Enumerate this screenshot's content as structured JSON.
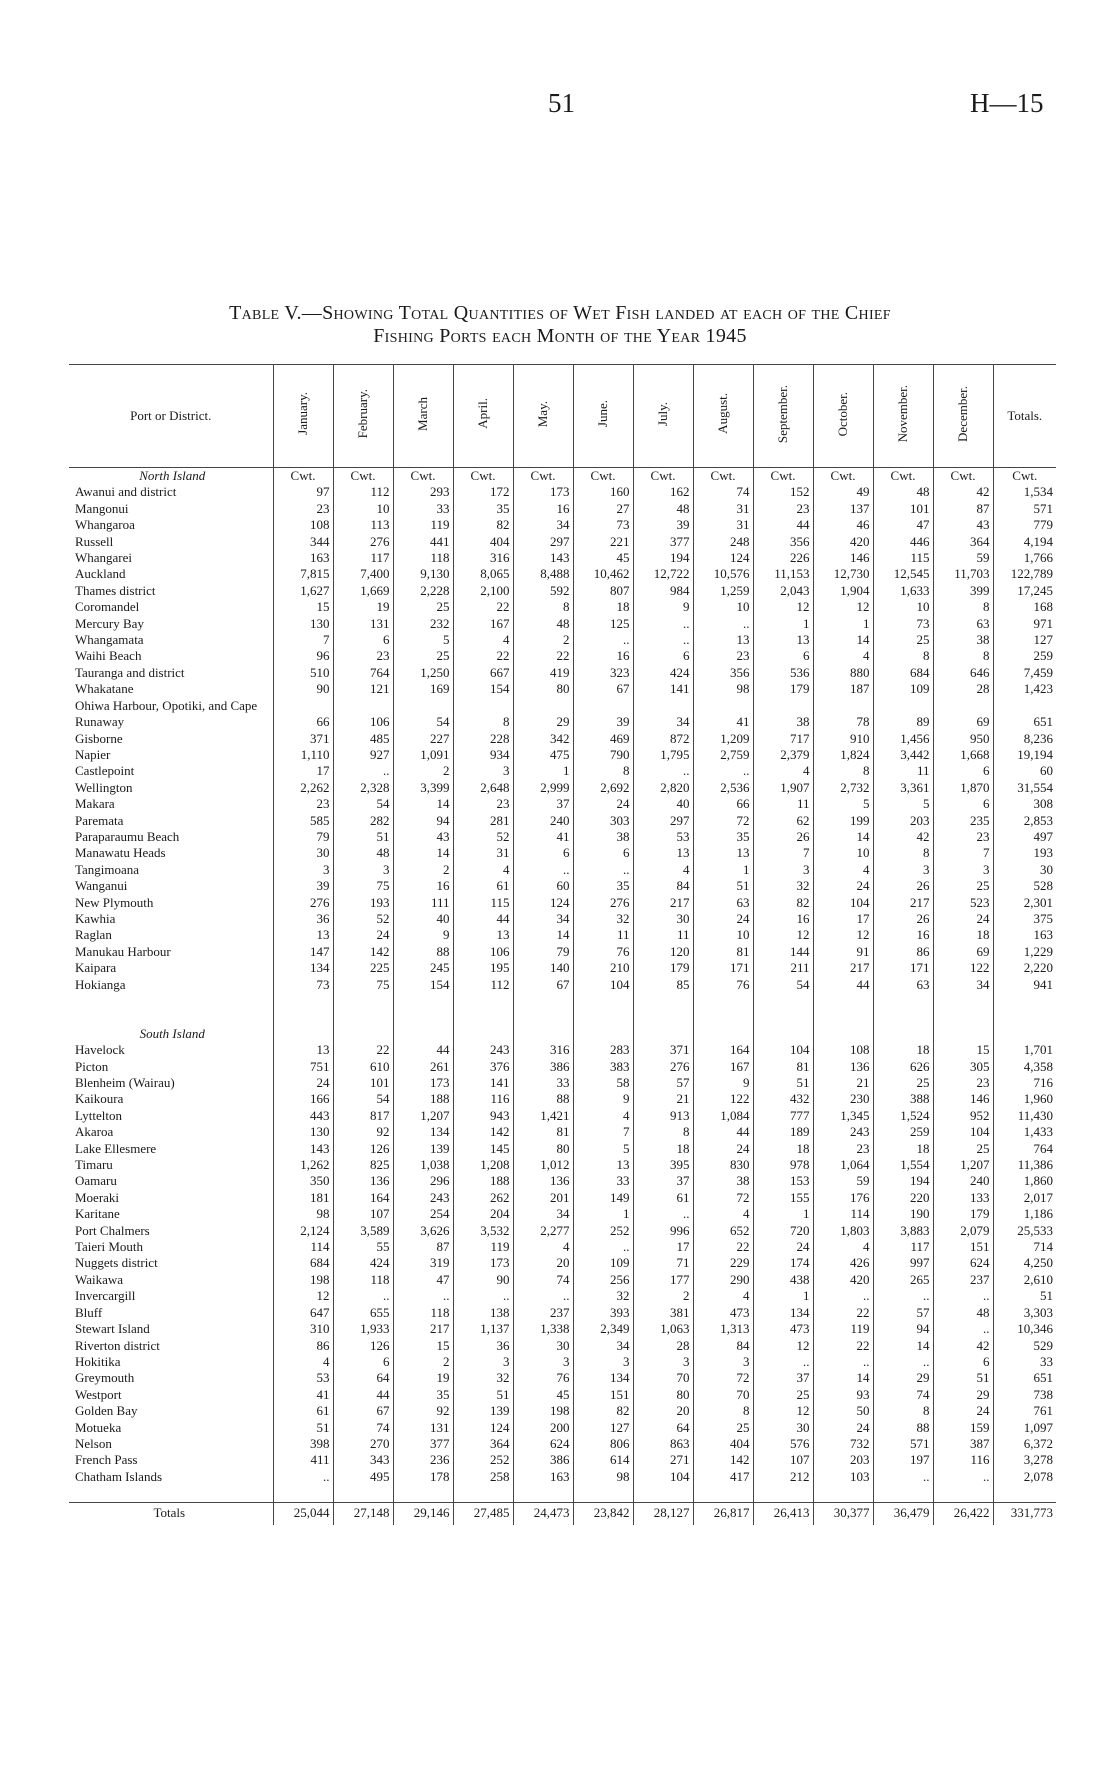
{
  "header": {
    "page_number": "51",
    "reference": "H—15"
  },
  "title": [
    "Table V.—Showing Total Quantities of Wet Fish landed at each of the Chief",
    "Fishing Ports each Month of the Year 1945"
  ],
  "table": {
    "columns": [
      "Port or District.",
      "January.",
      "February.",
      "March",
      "April.",
      "May.",
      "June.",
      "July.",
      "August.",
      "September.",
      "October.",
      "November.",
      "December.",
      "Totals."
    ],
    "units": [
      "Cwt.",
      "Cwt.",
      "Cwt.",
      "Cwt.",
      "Cwt.",
      "Cwt.",
      "Cwt.",
      "Cwt.",
      "Cwt.",
      "Cwt.",
      "Cwt.",
      "Cwt.",
      "Cwt."
    ],
    "sections": [
      {
        "heading": "North Island",
        "rows": [
          [
            "Awanui and district",
            "97",
            "112",
            "293",
            "172",
            "173",
            "160",
            "162",
            "74",
            "152",
            "49",
            "48",
            "42",
            "1,534"
          ],
          [
            "Mangonui",
            "23",
            "10",
            "33",
            "35",
            "16",
            "27",
            "48",
            "31",
            "23",
            "137",
            "101",
            "87",
            "571"
          ],
          [
            "Whangaroa",
            "108",
            "113",
            "119",
            "82",
            "34",
            "73",
            "39",
            "31",
            "44",
            "46",
            "47",
            "43",
            "779"
          ],
          [
            "Russell",
            "344",
            "276",
            "441",
            "404",
            "297",
            "221",
            "377",
            "248",
            "356",
            "420",
            "446",
            "364",
            "4,194"
          ],
          [
            "Whangarei",
            "163",
            "117",
            "118",
            "316",
            "143",
            "45",
            "194",
            "124",
            "226",
            "146",
            "115",
            "59",
            "1,766"
          ],
          [
            "Auckland",
            "7,815",
            "7,400",
            "9,130",
            "8,065",
            "8,488",
            "10,462",
            "12,722",
            "10,576",
            "11,153",
            "12,730",
            "12,545",
            "11,703",
            "122,789"
          ],
          [
            "Thames district",
            "1,627",
            "1,669",
            "2,228",
            "2,100",
            "592",
            "807",
            "984",
            "1,259",
            "2,043",
            "1,904",
            "1,633",
            "399",
            "17,245"
          ],
          [
            "Coromandel",
            "15",
            "19",
            "25",
            "22",
            "8",
            "18",
            "9",
            "10",
            "12",
            "12",
            "10",
            "8",
            "168"
          ],
          [
            "Mercury Bay",
            "130",
            "131",
            "232",
            "167",
            "48",
            "125",
            "..",
            "..",
            "1",
            "1",
            "73",
            "63",
            "971"
          ],
          [
            "Whangamata",
            "7",
            "6",
            "5",
            "4",
            "2",
            "..",
            "..",
            "13",
            "13",
            "14",
            "25",
            "38",
            "127"
          ],
          [
            "Waihi Beach",
            "96",
            "23",
            "25",
            "22",
            "22",
            "16",
            "6",
            "23",
            "6",
            "4",
            "8",
            "8",
            "259"
          ],
          [
            "Tauranga and district",
            "510",
            "764",
            "1,250",
            "667",
            "419",
            "323",
            "424",
            "356",
            "536",
            "880",
            "684",
            "646",
            "7,459"
          ],
          [
            "Whakatane",
            "90",
            "121",
            "169",
            "154",
            "80",
            "67",
            "141",
            "98",
            "179",
            "187",
            "109",
            "28",
            "1,423"
          ],
          [
            "Ohiwa Harbour, Opotiki, and Cape Runaway",
            "66",
            "106",
            "54",
            "8",
            "29",
            "39",
            "34",
            "41",
            "38",
            "78",
            "89",
            "69",
            "651"
          ],
          [
            "Gisborne",
            "371",
            "485",
            "227",
            "228",
            "342",
            "469",
            "872",
            "1,209",
            "717",
            "910",
            "1,456",
            "950",
            "8,236"
          ],
          [
            "Napier",
            "1,110",
            "927",
            "1,091",
            "934",
            "475",
            "790",
            "1,795",
            "2,759",
            "2,379",
            "1,824",
            "3,442",
            "1,668",
            "19,194"
          ],
          [
            "Castlepoint",
            "17",
            "..",
            "2",
            "3",
            "1",
            "8",
            "..",
            "..",
            "4",
            "8",
            "11",
            "6",
            "60"
          ],
          [
            "Wellington",
            "2,262",
            "2,328",
            "3,399",
            "2,648",
            "2,999",
            "2,692",
            "2,820",
            "2,536",
            "1,907",
            "2,732",
            "3,361",
            "1,870",
            "31,554"
          ],
          [
            "Makara",
            "23",
            "54",
            "14",
            "23",
            "37",
            "24",
            "40",
            "66",
            "11",
            "5",
            "5",
            "6",
            "308"
          ],
          [
            "Paremata",
            "585",
            "282",
            "94",
            "281",
            "240",
            "303",
            "297",
            "72",
            "62",
            "199",
            "203",
            "235",
            "2,853"
          ],
          [
            "Paraparaumu Beach",
            "79",
            "51",
            "43",
            "52",
            "41",
            "38",
            "53",
            "35",
            "26",
            "14",
            "42",
            "23",
            "497"
          ],
          [
            "Manawatu Heads",
            "30",
            "48",
            "14",
            "31",
            "6",
            "6",
            "13",
            "13",
            "7",
            "10",
            "8",
            "7",
            "193"
          ],
          [
            "Tangimoana",
            "3",
            "3",
            "2",
            "4",
            "..",
            "..",
            "4",
            "1",
            "3",
            "4",
            "3",
            "3",
            "30"
          ],
          [
            "Wanganui",
            "39",
            "75",
            "16",
            "61",
            "60",
            "35",
            "84",
            "51",
            "32",
            "24",
            "26",
            "25",
            "528"
          ],
          [
            "New Plymouth",
            "276",
            "193",
            "111",
            "115",
            "124",
            "276",
            "217",
            "63",
            "82",
            "104",
            "217",
            "523",
            "2,301"
          ],
          [
            "Kawhia",
            "36",
            "52",
            "40",
            "44",
            "34",
            "32",
            "30",
            "24",
            "16",
            "17",
            "26",
            "24",
            "375"
          ],
          [
            "Raglan",
            "13",
            "24",
            "9",
            "13",
            "14",
            "11",
            "11",
            "10",
            "12",
            "12",
            "16",
            "18",
            "163"
          ],
          [
            "Manukau Harbour",
            "147",
            "142",
            "88",
            "106",
            "79",
            "76",
            "120",
            "81",
            "144",
            "91",
            "86",
            "69",
            "1,229"
          ],
          [
            "Kaipara",
            "134",
            "225",
            "245",
            "195",
            "140",
            "210",
            "179",
            "171",
            "211",
            "217",
            "171",
            "122",
            "2,220"
          ],
          [
            "Hokianga",
            "73",
            "75",
            "154",
            "112",
            "67",
            "104",
            "85",
            "76",
            "54",
            "44",
            "63",
            "34",
            "941"
          ]
        ]
      },
      {
        "heading": "South Island",
        "rows": [
          [
            "Havelock",
            "13",
            "22",
            "44",
            "243",
            "316",
            "283",
            "371",
            "164",
            "104",
            "108",
            "18",
            "15",
            "1,701"
          ],
          [
            "Picton",
            "751",
            "610",
            "261",
            "376",
            "386",
            "383",
            "276",
            "167",
            "81",
            "136",
            "626",
            "305",
            "4,358"
          ],
          [
            "Blenheim (Wairau)",
            "24",
            "101",
            "173",
            "141",
            "33",
            "58",
            "57",
            "9",
            "51",
            "21",
            "25",
            "23",
            "716"
          ],
          [
            "Kaikoura",
            "166",
            "54",
            "188",
            "116",
            "88",
            "9",
            "21",
            "122",
            "432",
            "230",
            "388",
            "146",
            "1,960"
          ],
          [
            "Lyttelton",
            "443",
            "817",
            "1,207",
            "943",
            "1,421",
            "4",
            "913",
            "1,084",
            "777",
            "1,345",
            "1,524",
            "952",
            "11,430"
          ],
          [
            "Akaroa",
            "130",
            "92",
            "134",
            "142",
            "81",
            "7",
            "8",
            "44",
            "189",
            "243",
            "259",
            "104",
            "1,433"
          ],
          [
            "Lake Ellesmere",
            "143",
            "126",
            "139",
            "145",
            "80",
            "5",
            "18",
            "24",
            "18",
            "23",
            "18",
            "25",
            "764"
          ],
          [
            "Timaru",
            "1,262",
            "825",
            "1,038",
            "1,208",
            "1,012",
            "13",
            "395",
            "830",
            "978",
            "1,064",
            "1,554",
            "1,207",
            "11,386"
          ],
          [
            "Oamaru",
            "350",
            "136",
            "296",
            "188",
            "136",
            "33",
            "37",
            "38",
            "153",
            "59",
            "194",
            "240",
            "1,860"
          ],
          [
            "Moeraki",
            "181",
            "164",
            "243",
            "262",
            "201",
            "149",
            "61",
            "72",
            "155",
            "176",
            "220",
            "133",
            "2,017"
          ],
          [
            "Karitane",
            "98",
            "107",
            "254",
            "204",
            "34",
            "1",
            "..",
            "4",
            "1",
            "114",
            "190",
            "179",
            "1,186"
          ],
          [
            "Port Chalmers",
            "2,124",
            "3,589",
            "3,626",
            "3,532",
            "2,277",
            "252",
            "996",
            "652",
            "720",
            "1,803",
            "3,883",
            "2,079",
            "25,533"
          ],
          [
            "Taieri Mouth",
            "114",
            "55",
            "87",
            "119",
            "4",
            "..",
            "17",
            "22",
            "24",
            "4",
            "117",
            "151",
            "714"
          ],
          [
            "Nuggets district",
            "684",
            "424",
            "319",
            "173",
            "20",
            "109",
            "71",
            "229",
            "174",
            "426",
            "997",
            "624",
            "4,250"
          ],
          [
            "Waikawa",
            "198",
            "118",
            "47",
            "90",
            "74",
            "256",
            "177",
            "290",
            "438",
            "420",
            "265",
            "237",
            "2,610"
          ],
          [
            "Invercargill",
            "12",
            "..",
            "..",
            "..",
            "..",
            "32",
            "2",
            "4",
            "1",
            "..",
            "..",
            "..",
            "51"
          ],
          [
            "Bluff",
            "647",
            "655",
            "118",
            "138",
            "237",
            "393",
            "381",
            "473",
            "134",
            "22",
            "57",
            "48",
            "3,303"
          ],
          [
            "Stewart Island",
            "310",
            "1,933",
            "217",
            "1,137",
            "1,338",
            "2,349",
            "1,063",
            "1,313",
            "473",
            "119",
            "94",
            "..",
            "10,346"
          ],
          [
            "Riverton district",
            "86",
            "126",
            "15",
            "36",
            "30",
            "34",
            "28",
            "84",
            "12",
            "22",
            "14",
            "42",
            "529"
          ],
          [
            "Hokitika",
            "4",
            "6",
            "2",
            "3",
            "3",
            "3",
            "3",
            "3",
            "..",
            "..",
            "..",
            "6",
            "33"
          ],
          [
            "Greymouth",
            "53",
            "64",
            "19",
            "32",
            "76",
            "134",
            "70",
            "72",
            "37",
            "14",
            "29",
            "51",
            "651"
          ],
          [
            "Westport",
            "41",
            "44",
            "35",
            "51",
            "45",
            "151",
            "80",
            "70",
            "25",
            "93",
            "74",
            "29",
            "738"
          ],
          [
            "Golden Bay",
            "61",
            "67",
            "92",
            "139",
            "198",
            "82",
            "20",
            "8",
            "12",
            "50",
            "8",
            "24",
            "761"
          ],
          [
            "Motueka",
            "51",
            "74",
            "131",
            "124",
            "200",
            "127",
            "64",
            "25",
            "30",
            "24",
            "88",
            "159",
            "1,097"
          ],
          [
            "Nelson",
            "398",
            "270",
            "377",
            "364",
            "624",
            "806",
            "863",
            "404",
            "576",
            "732",
            "571",
            "387",
            "6,372"
          ],
          [
            "French Pass",
            "411",
            "343",
            "236",
            "252",
            "386",
            "614",
            "271",
            "142",
            "107",
            "203",
            "197",
            "116",
            "3,278"
          ],
          [
            "Chatham Islands",
            "..",
            "495",
            "178",
            "258",
            "163",
            "98",
            "104",
            "417",
            "212",
            "103",
            "..",
            "..",
            "2,078"
          ]
        ]
      }
    ],
    "totals": {
      "label": "Totals",
      "values": [
        "25,044",
        "27,148",
        "29,146",
        "27,485",
        "24,473",
        "23,842",
        "28,127",
        "26,817",
        "26,413",
        "30,377",
        "36,479",
        "26,422",
        "331,773"
      ]
    }
  }
}
